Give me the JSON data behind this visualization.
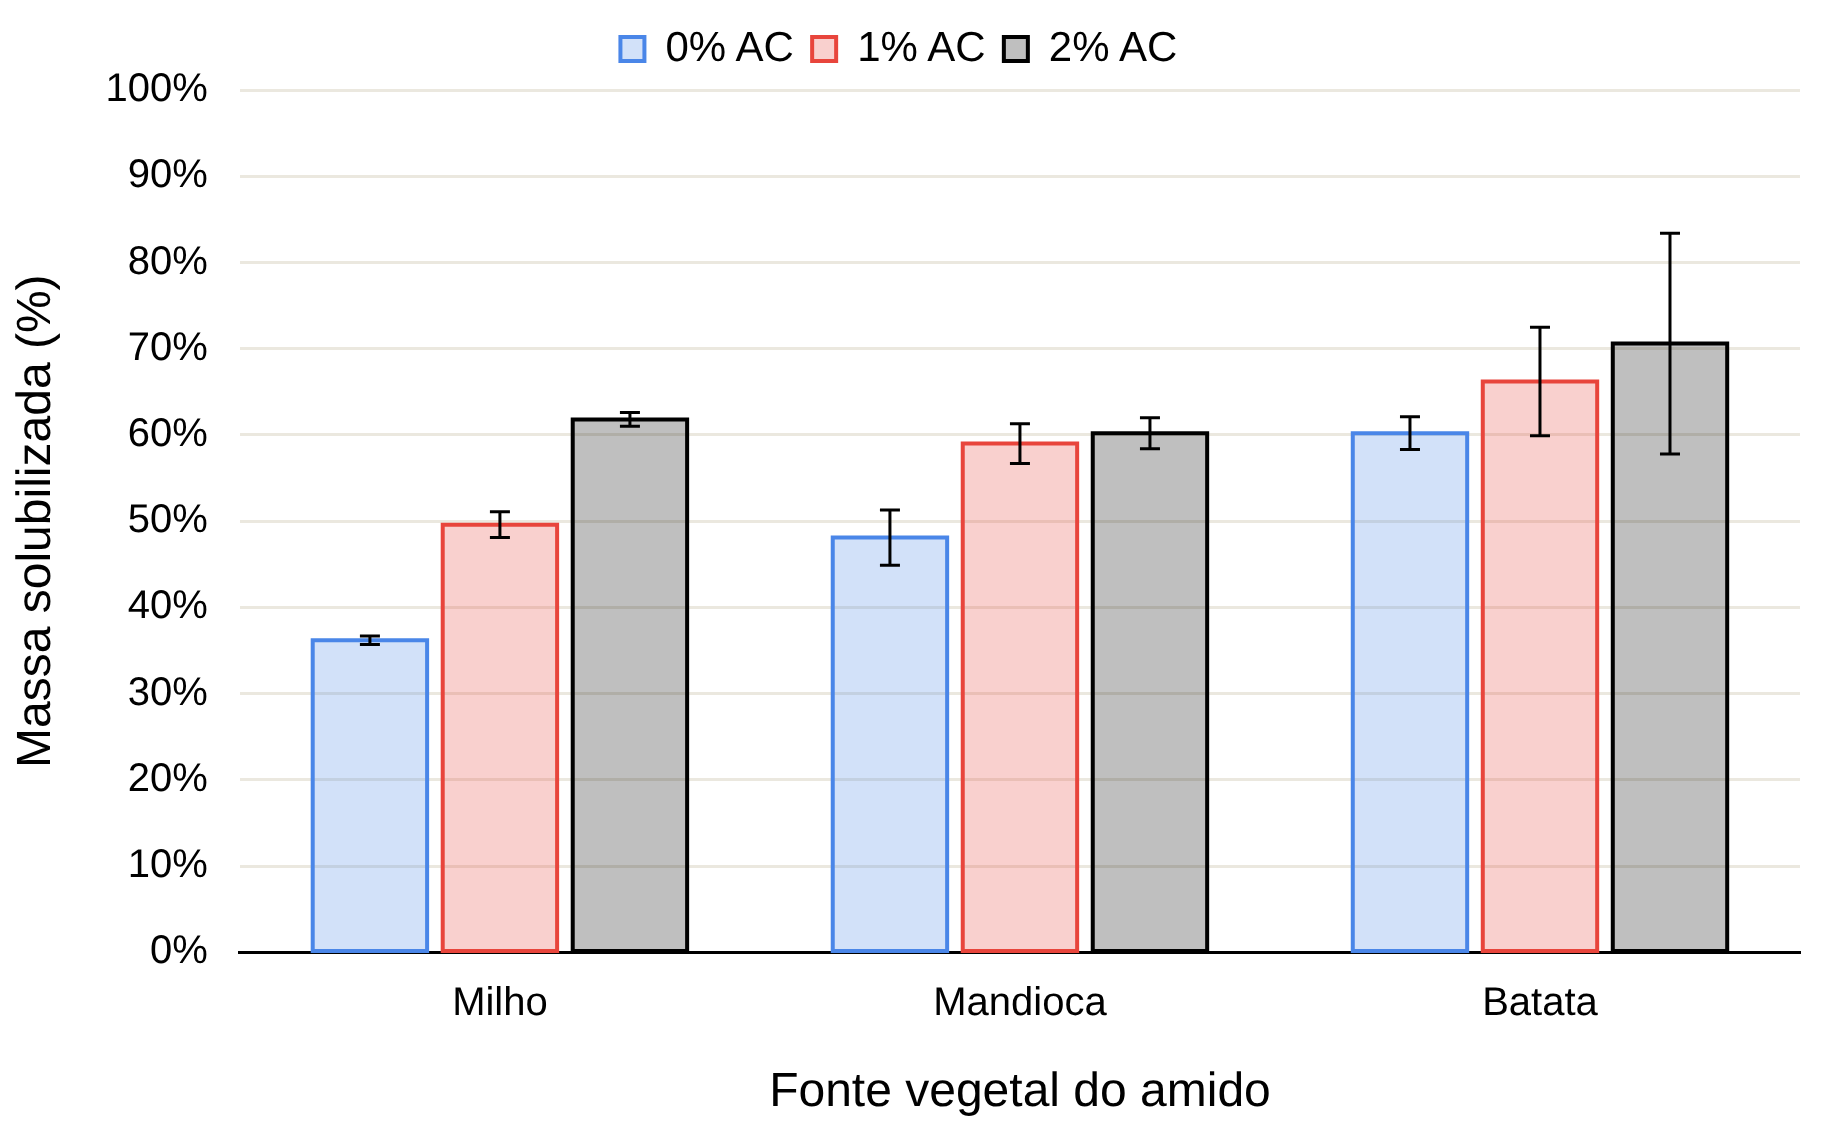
{
  "chart_data": {
    "type": "bar",
    "xlabel": "Fonte vegetal do amido",
    "ylabel": "Massa solubilizada (%)",
    "categories": [
      "Milho",
      "Mandioca",
      "Batata"
    ],
    "series": [
      {
        "name": "0% AC",
        "color": "#4a86e8",
        "values": [
          36.2,
          48.1,
          60.2
        ],
        "errors": [
          0.5,
          3.2,
          1.9
        ]
      },
      {
        "name": "1% AC",
        "color": "#e8453c",
        "values": [
          49.6,
          59.0,
          66.2
        ],
        "errors": [
          1.5,
          2.3,
          6.3
        ]
      },
      {
        "name": "2% AC",
        "color": "#000000",
        "values": [
          61.8,
          60.2,
          70.6
        ],
        "errors": [
          0.8,
          1.8,
          12.8
        ]
      }
    ],
    "ylim": [
      0,
      100
    ],
    "yticks": [
      {
        "value": 0,
        "label": "0%"
      },
      {
        "value": 10,
        "label": "10%"
      },
      {
        "value": 20,
        "label": "20%"
      },
      {
        "value": 30,
        "label": "30%"
      },
      {
        "value": 40,
        "label": "40%"
      },
      {
        "value": 50,
        "label": "50%"
      },
      {
        "value": 60,
        "label": "60%"
      },
      {
        "value": 70,
        "label": "70%"
      },
      {
        "value": 80,
        "label": "80%"
      },
      {
        "value": 90,
        "label": "90%"
      },
      {
        "value": 100,
        "label": "100%"
      }
    ],
    "grid": "y",
    "legend": "top"
  }
}
